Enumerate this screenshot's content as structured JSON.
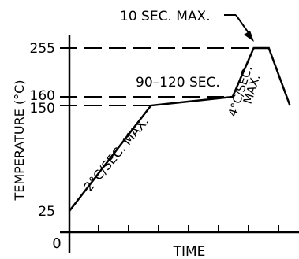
{
  "chart_data": {
    "type": "line",
    "title": "",
    "xlabel": "TIME",
    "ylabel": "TEMPERATURE (°C)",
    "origin_label": "0",
    "y_ticks": [
      {
        "value": 25,
        "label": "25"
      },
      {
        "value": 150,
        "label": "150"
      },
      {
        "value": 160,
        "label": "160"
      },
      {
        "value": 255,
        "label": "255"
      }
    ],
    "series": [
      {
        "x": [
          0,
          2.7,
          5.4,
          6.1,
          6.6,
          7.3
        ],
        "y": [
          25,
          150,
          160,
          255,
          255,
          150
        ]
      }
    ],
    "reference_lines": [
      {
        "type": "horizontal",
        "y": 150,
        "x_end": 2.7
      },
      {
        "type": "horizontal",
        "y": 160,
        "x_end": 5.4
      },
      {
        "type": "horizontal",
        "y": 255,
        "x_end": 6.6
      }
    ],
    "annotations": [
      {
        "text": "10 SEC. MAX."
      },
      {
        "text": "90–120 SEC."
      },
      {
        "text": "2°C/SEC. MAX."
      },
      {
        "text": "4°C/SEC."
      },
      {
        "text": "MAX."
      }
    ],
    "x_ticks_count": 7,
    "grid": false,
    "xlim": [
      0,
      7.6
    ],
    "ylim": [
      0,
      255
    ]
  }
}
